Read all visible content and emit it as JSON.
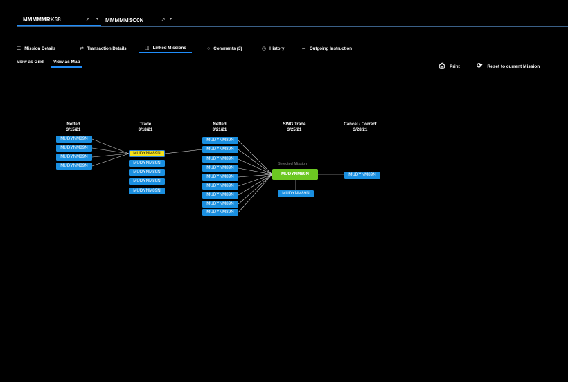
{
  "mission_tabs": [
    {
      "title": "MMMMMRK58",
      "icon": "share-icon"
    },
    {
      "title": "MMMMMSC0N",
      "icon": "share-icon"
    }
  ],
  "detail_tabs": [
    {
      "label": "Mission Details",
      "icon": "list-icon"
    },
    {
      "label": "Transaction Details",
      "icon": "transfer-icon"
    },
    {
      "label": "Linked Missions",
      "icon": "linked-doc-icon",
      "active": true
    },
    {
      "label": "Comments (3)",
      "icon": "comment-icon"
    },
    {
      "label": "History",
      "icon": "clock-icon"
    },
    {
      "label": "Outgoing Instruction",
      "icon": "outgoing-arrow-icon"
    }
  ],
  "view": {
    "grid_label": "View as Grid",
    "map_label": "View as Map",
    "active": "map"
  },
  "actions": {
    "print_label": "Print",
    "reset_label": "Reset to current Mission"
  },
  "columns": [
    {
      "title": "Netted",
      "date": "3/15/21"
    },
    {
      "title": "Trade",
      "date": "3/18/21"
    },
    {
      "title": "Netted",
      "date": "3/21/21"
    },
    {
      "title": "SWG Trade",
      "date": "3/25/21"
    },
    {
      "title": "Cancel / Correct",
      "date": "3/28/21"
    }
  ],
  "nodes": {
    "col0": [
      "MUDYNM89N",
      "MUDYNM89N",
      "MUDYNM89N",
      "MUDYNM89N"
    ],
    "col1_highlight": "MUDYNM89N",
    "col1": [
      "MUDYNM89N",
      "MUDYNM89N",
      "MUDYNM89N",
      "MUDYNM89N"
    ],
    "col2": [
      "MUDYNM89N",
      "MUDYNM89N",
      "MUDYNM89N",
      "MUDYNM89N",
      "MUDYNM89N",
      "MUDYNM89N",
      "MUDYNM89N",
      "MUDYNM89N",
      "MUDYNM89N"
    ],
    "selected_label": "Selected Mission",
    "selected": "MUDYNM89N",
    "col3_below": "MUDYNM89N",
    "col4": "MUDYNM89N"
  },
  "colors": {
    "accent": "#1f8dfa",
    "node": "#1a8fe0",
    "highlight": "#f4e21b",
    "selected": "#6cc822"
  }
}
